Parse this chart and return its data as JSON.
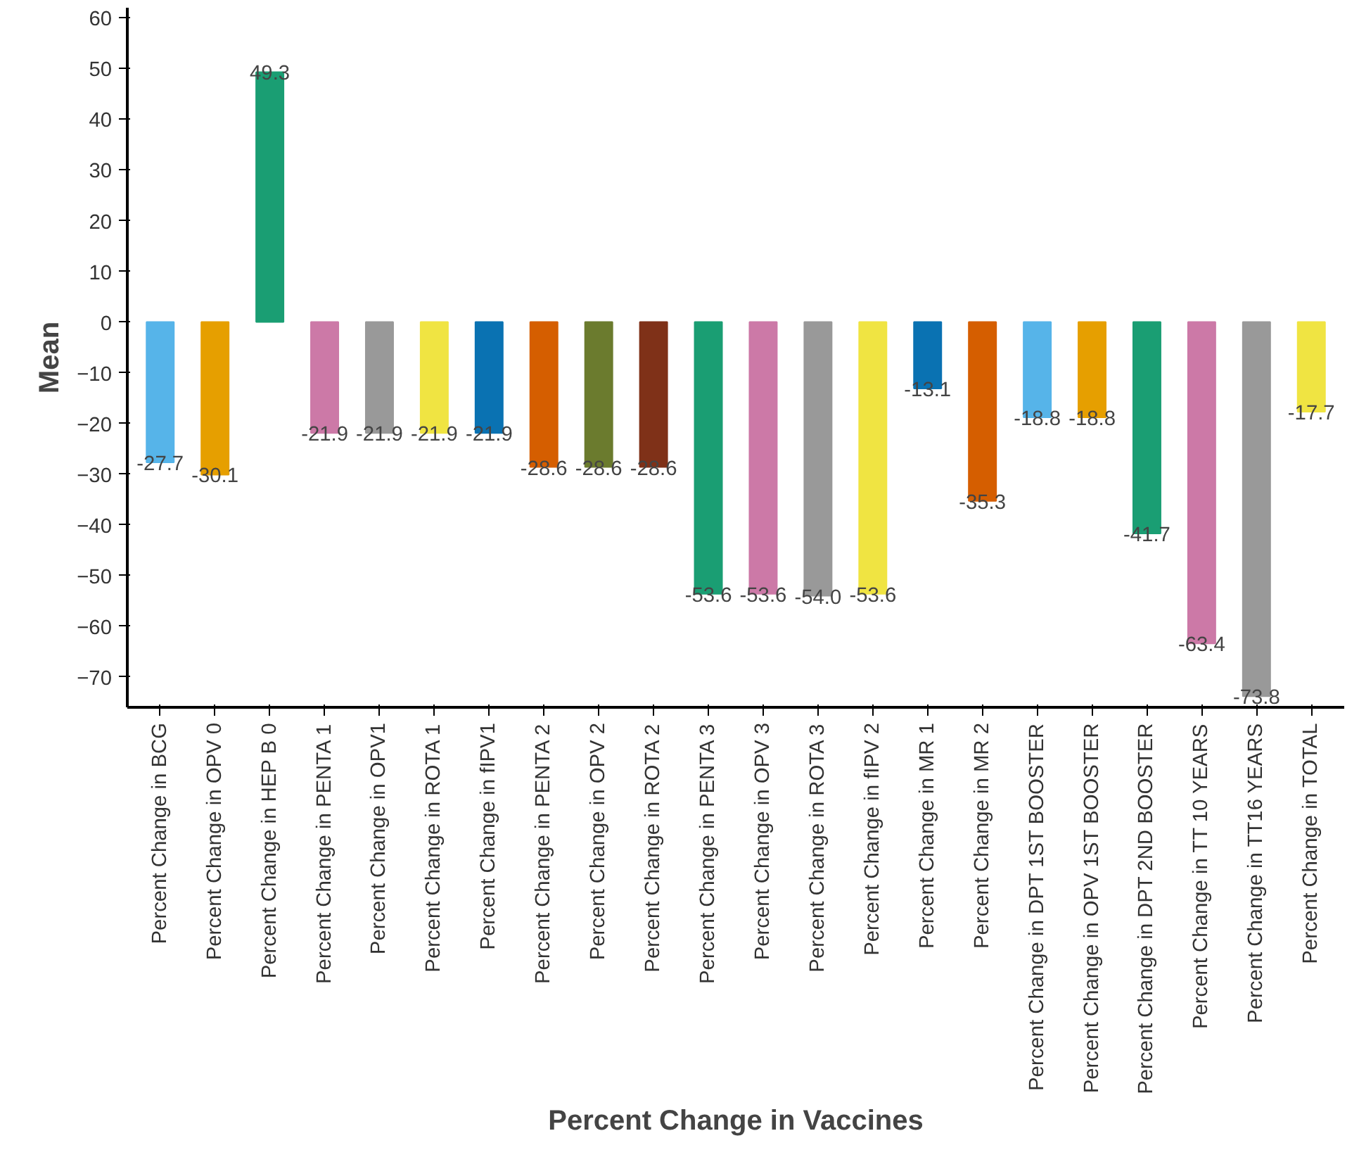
{
  "chart_data": {
    "type": "bar",
    "xlabel": "Percent Change in Vaccines",
    "ylabel": "Mean",
    "categories": [
      "Percent Change in BCG",
      "Percent Change in OPV 0",
      "Percent Change in HEP B 0",
      "Percent Change in PENTA 1",
      "Percent Change in OPV1",
      "Percent Change in ROTA 1",
      "Percent Change in fIPV1",
      "Percent Change in PENTA 2",
      "Percent Change in OPV 2",
      "Percent Change in ROTA 2",
      "Percent Change in PENTA 3",
      "Percent Change in OPV 3",
      "Percent Change in ROTA 3",
      "Percent Change in fIPV 2",
      "Percent Change in MR 1",
      "Percent Change in MR 2",
      "Percent Change in DPT 1ST BOOSTER",
      "Percent Change in OPV 1ST BOOSTER",
      "Percent Change in DPT 2ND BOOSTER",
      "Percent Change in TT 10 YEARS",
      "Percent Change in TT16 YEARS",
      "Percent Change in TOTAL"
    ],
    "values": [
      -27.7,
      -30.1,
      49.3,
      -21.9,
      -21.9,
      -21.9,
      -21.9,
      -28.6,
      -28.6,
      -28.6,
      -53.6,
      -53.6,
      -54.0,
      -53.6,
      -13.1,
      -35.3,
      -18.8,
      -18.8,
      -41.7,
      -63.4,
      -73.8,
      -17.7
    ],
    "value_labels": [
      "-27.7",
      "-30.1",
      "49.3",
      "-21.9",
      "-21.9",
      "-21.9",
      "-21.9",
      "-28.6",
      "-28.6",
      "-28.6",
      "-53.6",
      "-53.6",
      "-54.0",
      "-53.6",
      "-13.1",
      "-35.3",
      "-18.8",
      "-18.8",
      "-41.7",
      "-63.4",
      "-73.8",
      "-17.7"
    ],
    "colors": [
      "#56b4e9",
      "#e69f00",
      "#1a9e73",
      "#cc79a7",
      "#999999",
      "#f0e442",
      "#0a72b2",
      "#d55e00",
      "#6b7b2e",
      "#7f3118",
      "#1a9e73",
      "#cc79a7",
      "#999999",
      "#f0e442",
      "#0a72b2",
      "#d55e00",
      "#56b4e9",
      "#e69f00",
      "#1a9e73",
      "#cc79a7",
      "#999999",
      "#f0e442"
    ],
    "ylim": [
      -76,
      62
    ],
    "yticks": [
      -70,
      -60,
      -50,
      -40,
      -30,
      -20,
      -10,
      0,
      10,
      20,
      30,
      40,
      50,
      60
    ],
    "grid": false
  }
}
